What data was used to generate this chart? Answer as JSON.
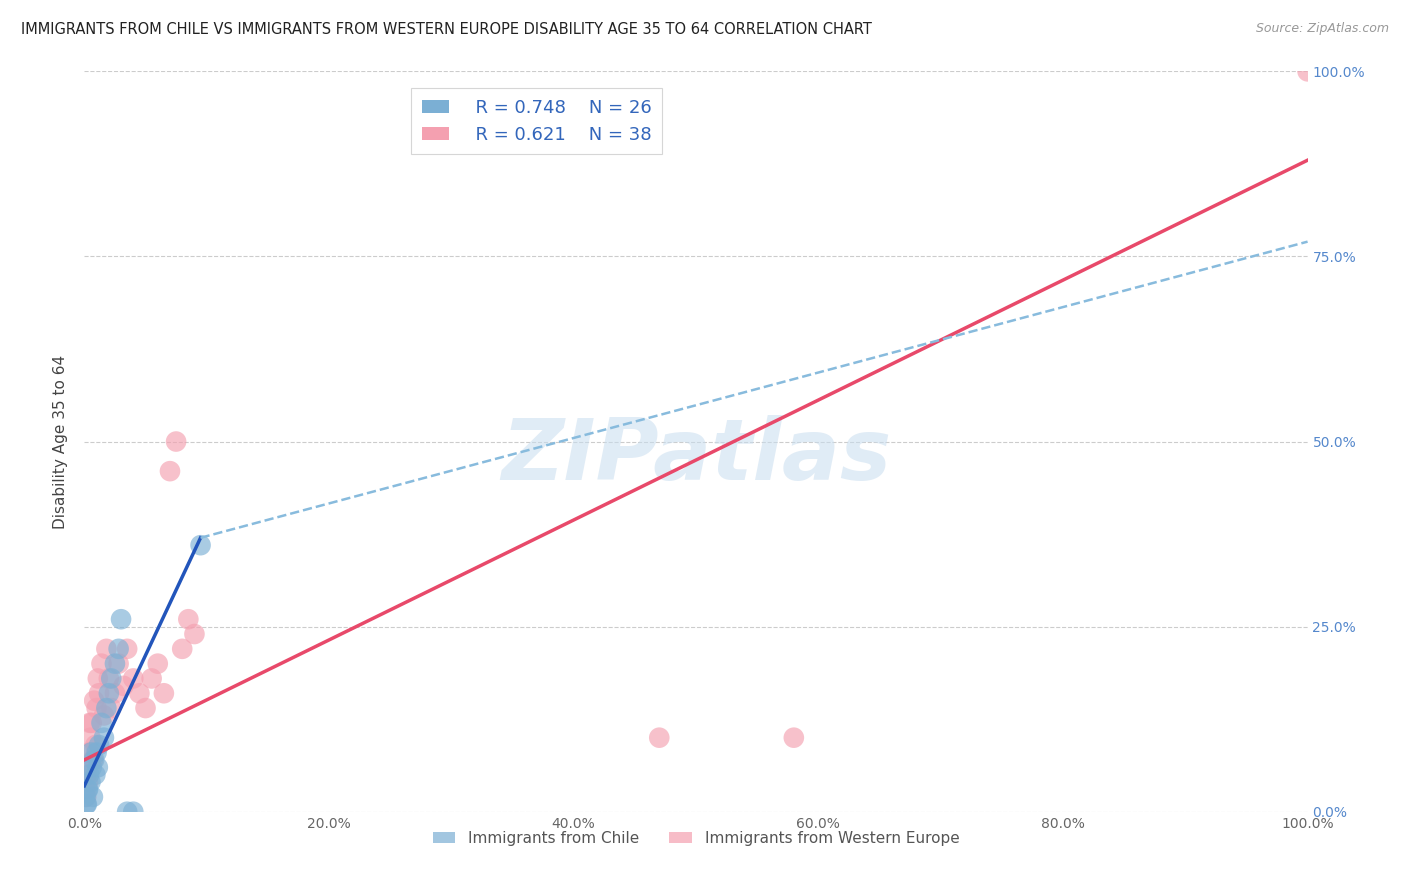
{
  "title": "IMMIGRANTS FROM CHILE VS IMMIGRANTS FROM WESTERN EUROPE DISABILITY AGE 35 TO 64 CORRELATION CHART",
  "source": "Source: ZipAtlas.com",
  "ylabel": "Disability Age 35 to 64",
  "x_tick_labels": [
    "0.0%",
    "20.0%",
    "40.0%",
    "60.0%",
    "80.0%",
    "100.0%"
  ],
  "x_tick_values": [
    0,
    20,
    40,
    60,
    80,
    100
  ],
  "y_tick_values": [
    0,
    25,
    50,
    75,
    100
  ],
  "y_tick_right_labels": [
    "0.0%",
    "25.0%",
    "50.0%",
    "75.0%",
    "100.0%"
  ],
  "xlim": [
    0,
    100
  ],
  "ylim": [
    0,
    100
  ],
  "blue_R": 0.748,
  "blue_N": 26,
  "pink_R": 0.621,
  "pink_N": 38,
  "blue_color": "#7BAFD4",
  "pink_color": "#F4A0B0",
  "blue_line_color": "#2255BB",
  "pink_line_color": "#E8496A",
  "blue_dash_color": "#88BBDD",
  "watermark_text": "ZIPatlas",
  "legend_label_blue": "Immigrants from Chile",
  "legend_label_pink": "Immigrants from Western Europe",
  "blue_scatter_x": [
    0.1,
    0.2,
    0.3,
    0.4,
    0.5,
    0.6,
    0.7,
    0.8,
    0.9,
    1.0,
    1.1,
    1.2,
    1.4,
    1.6,
    1.8,
    2.0,
    2.2,
    2.5,
    2.8,
    3.0,
    3.5,
    4.0,
    0.15,
    0.25,
    0.55,
    9.5
  ],
  "blue_scatter_y": [
    2,
    1,
    3,
    5,
    4,
    6,
    2,
    7,
    5,
    8,
    6,
    9,
    12,
    10,
    14,
    16,
    18,
    20,
    22,
    26,
    0,
    0,
    1,
    3,
    8,
    36
  ],
  "pink_scatter_x": [
    0.1,
    0.2,
    0.3,
    0.4,
    0.5,
    0.6,
    0.7,
    0.8,
    0.9,
    1.0,
    1.1,
    1.2,
    1.4,
    1.6,
    1.8,
    2.0,
    2.2,
    2.5,
    2.8,
    3.2,
    3.5,
    4.0,
    4.5,
    5.0,
    5.5,
    6.0,
    6.5,
    7.0,
    7.5,
    8.0,
    8.5,
    9.0,
    0.15,
    0.25,
    0.45,
    47.0,
    58.0,
    100.0
  ],
  "pink_scatter_y": [
    3,
    5,
    4,
    8,
    10,
    12,
    7,
    15,
    9,
    14,
    18,
    16,
    20,
    13,
    22,
    18,
    14,
    16,
    20,
    17,
    22,
    18,
    16,
    14,
    18,
    20,
    16,
    46,
    50,
    22,
    26,
    24,
    2,
    6,
    12,
    10,
    10,
    100
  ],
  "blue_line_x0": 0.0,
  "blue_line_x1": 9.5,
  "blue_line_y0": 3.5,
  "blue_line_y1": 37.0,
  "pink_line_x0": 0.0,
  "pink_line_x1": 100.0,
  "pink_line_y0": 7.0,
  "pink_line_y1": 88.0,
  "blue_dash_x0": 9.5,
  "blue_dash_x1": 100.0,
  "blue_dash_y0": 37.0,
  "blue_dash_y1": 77.0
}
